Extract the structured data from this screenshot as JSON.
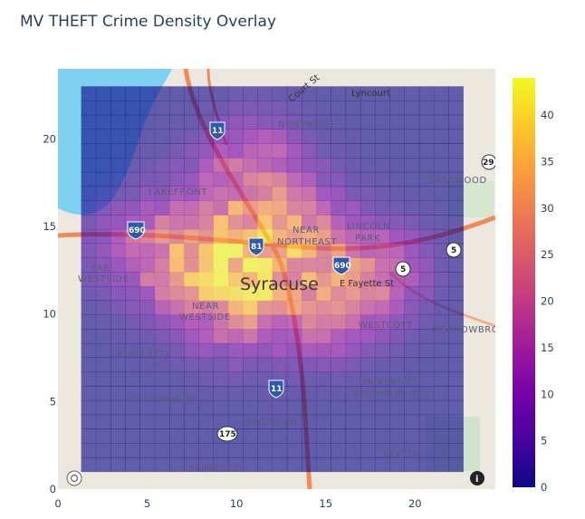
{
  "title": "MV THEFT Crime Density Overlay",
  "chart_data": {
    "type": "heatmap",
    "title": "MV THEFT Crime Density Overlay",
    "xlabel": "",
    "ylabel": "",
    "xlim": [
      0,
      24.5
    ],
    "ylim": [
      0,
      24
    ],
    "x_ticks": [
      "0",
      "5",
      "10",
      "15",
      "20"
    ],
    "y_ticks": [
      "0",
      "5",
      "10",
      "15",
      "20"
    ],
    "colorbar": {
      "min": 0,
      "max": 44,
      "ticks": [
        "0",
        "5",
        "10",
        "15",
        "20",
        "25",
        "30",
        "35",
        "40"
      ]
    },
    "colorscale": [
      "#0d0887",
      "#46039f",
      "#7201a8",
      "#9c179e",
      "#bd3786",
      "#d8576b",
      "#ed7953",
      "#fb9f3a",
      "#fdca26",
      "#f0f921"
    ],
    "grid_extent": {
      "x": [
        1.3,
        22.7
      ],
      "y": [
        1.0,
        23.0
      ]
    },
    "grid_cols": 26,
    "grid_rows": 27,
    "hotspots": [
      {
        "x": 11.3,
        "y": 13.0,
        "s": 2.6,
        "a": 24
      },
      {
        "x": 8.5,
        "y": 14.2,
        "s": 2.5,
        "a": 16
      },
      {
        "x": 11.0,
        "y": 18.8,
        "s": 1.8,
        "a": 14
      },
      {
        "x": 16.2,
        "y": 12.0,
        "s": 2.2,
        "a": 17
      },
      {
        "x": 18.5,
        "y": 12.5,
        "s": 1.6,
        "a": 10
      },
      {
        "x": 6.0,
        "y": 13.0,
        "s": 2.0,
        "a": 12
      },
      {
        "x": 10.0,
        "y": 10.5,
        "s": 2.0,
        "a": 12
      },
      {
        "x": 13.5,
        "y": 15.5,
        "s": 1.8,
        "a": 9
      },
      {
        "x": 15.0,
        "y": 9.5,
        "s": 1.6,
        "a": 8
      },
      {
        "x": 3.5,
        "y": 14.0,
        "s": 1.5,
        "a": 6
      }
    ]
  },
  "map": {
    "city": "Syracuse",
    "neighborhoods": [
      "NORTHSIDE",
      "LAKEFRONT",
      "NEAR",
      "NORTHEAST",
      "LINCOLN",
      "PARK",
      "EASTWOOD",
      "FAR",
      "WESTSIDE",
      "NEAR",
      "WESTSIDE",
      "WESTCOTT",
      "MEADOWBRO",
      "SKUNK CITY",
      "STRATHMORE",
      "UNIVERSITY",
      "NEIGHBORHOOD",
      "BRIGHTON",
      "SKYTOP",
      "ELMWOOD"
    ],
    "streets": [
      "Court St",
      "Lyncourt",
      "E Fayette St",
      "a Rd"
    ],
    "shields": [
      "11",
      "690",
      "81",
      "690",
      "5",
      "5",
      "29",
      "11",
      "175"
    ]
  }
}
